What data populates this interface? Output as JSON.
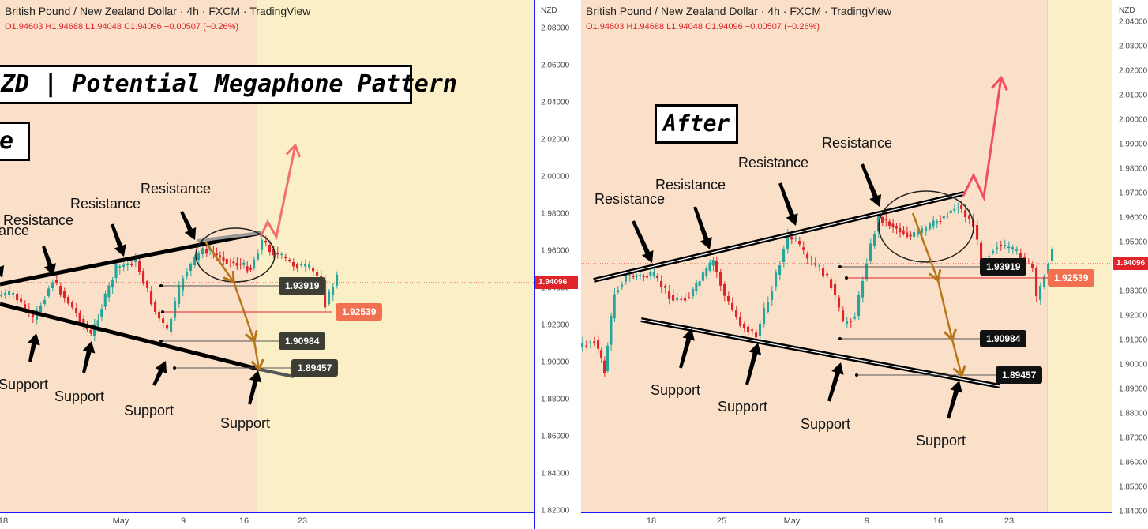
{
  "header": {
    "symbol_line": "British Pound / New Zealand Dollar · 4h · FXCM · TradingView",
    "ohlc_line": "O1.94603  H1.94688  L1.94048  C1.94096  −0.00507 (−0.26%)"
  },
  "axis_unit": "NZD",
  "current_price": "1.94096",
  "left_panel": {
    "title": "ZD | Potential Megaphone Pattern",
    "subtitle": "e",
    "y_ticks": [
      "2.08000",
      "2.06000",
      "2.04000",
      "2.02000",
      "2.00000",
      "1.98000",
      "1.96000",
      "1.94000",
      "1.92000",
      "1.90000",
      "1.88000",
      "1.86000",
      "1.84000",
      "1.82000"
    ],
    "x_ticks": [
      "18",
      "May",
      "9",
      "16",
      "23"
    ],
    "labels": {
      "resistance_1": "Resistance",
      "resistance_2": "Resistance",
      "resistance_3": "Resistance",
      "resistance_cut": "ance",
      "support_1": "Support",
      "support_2": "Support",
      "support_3": "Support",
      "support_4": "Support"
    },
    "tags": {
      "t1": "1.93919",
      "t2": "1.92539",
      "t3": "1.90984",
      "t4": "1.89457"
    }
  },
  "right_panel": {
    "title": "After",
    "y_ticks": [
      "2.04000",
      "2.03000",
      "2.02000",
      "2.01000",
      "2.00000",
      "1.99000",
      "1.98000",
      "1.97000",
      "1.96000",
      "1.95000",
      "1.94000",
      "1.93000",
      "1.92000",
      "1.91000",
      "1.90000",
      "1.89000",
      "1.88000",
      "1.87000",
      "1.86000",
      "1.85000",
      "1.84000"
    ],
    "x_ticks": [
      "18",
      "25",
      "May",
      "9",
      "16",
      "23"
    ],
    "labels": {
      "resistance_1": "Resistance",
      "resistance_2": "Resistance",
      "resistance_3": "Resistance",
      "resistance_4": "Resistance",
      "support_1": "Support",
      "support_2": "Support",
      "support_3": "Support",
      "support_4": "Support"
    },
    "tags": {
      "t1": "1.93919",
      "t2": "1.92539",
      "t3": "1.90984",
      "t4": "1.89457"
    }
  },
  "colors": {
    "up": "#26a69a",
    "down": "#e0242a",
    "peach": "#fae0c8",
    "yellow": "#fbefc8",
    "dark_tag": "#3d3d35",
    "black_tag": "#111111",
    "orange_tag": "#f07050",
    "arrow_red": "#f05060",
    "arrow_brown": "#b8761a"
  },
  "chart_data": [
    {
      "type": "line",
      "title": "ZD | Potential Megaphone Pattern",
      "ylabel": "NZD",
      "ylim": [
        1.81,
        2.09
      ],
      "x": [
        "18",
        "May",
        "9",
        "16",
        "23"
      ],
      "series": [],
      "levels": [
        1.93919,
        1.92539,
        1.90984,
        1.89457
      ],
      "last": 1.94096
    },
    {
      "type": "line",
      "title": "After",
      "ylabel": "NZD",
      "ylim": [
        1.835,
        2.045
      ],
      "x": [
        "18",
        "25",
        "May",
        "9",
        "16",
        "23"
      ],
      "series": [],
      "levels": [
        1.93919,
        1.92539,
        1.90984,
        1.89457
      ],
      "last": 1.94096
    }
  ]
}
